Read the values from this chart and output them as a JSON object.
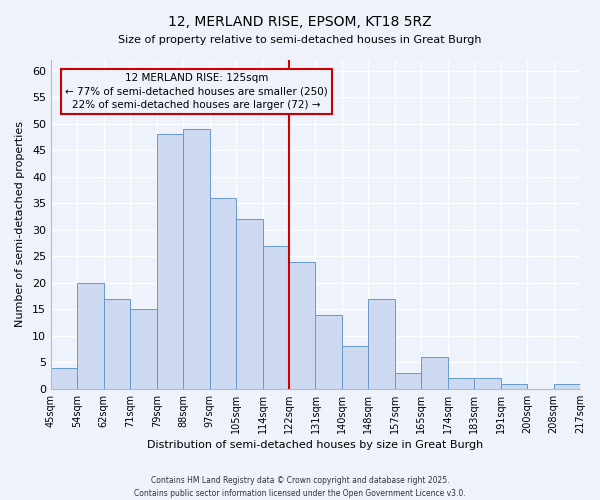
{
  "title": "12, MERLAND RISE, EPSOM, KT18 5RZ",
  "subtitle": "Size of property relative to semi-detached houses in Great Burgh",
  "xlabel": "Distribution of semi-detached houses by size in Great Burgh",
  "ylabel": "Number of semi-detached properties",
  "bin_labels": [
    "45sqm",
    "54sqm",
    "62sqm",
    "71sqm",
    "79sqm",
    "88sqm",
    "97sqm",
    "105sqm",
    "114sqm",
    "122sqm",
    "131sqm",
    "140sqm",
    "148sqm",
    "157sqm",
    "165sqm",
    "174sqm",
    "183sqm",
    "191sqm",
    "200sqm",
    "208sqm",
    "217sqm"
  ],
  "counts": [
    4,
    20,
    17,
    15,
    48,
    49,
    36,
    32,
    27,
    24,
    14,
    8,
    17,
    3,
    6,
    2,
    2,
    1,
    0,
    1
  ],
  "bar_color": "#ccd9f0",
  "bar_edge_color": "#6699cc",
  "vline_idx": 9,
  "vline_color": "#cc0000",
  "annotation_title": "12 MERLAND RISE: 125sqm",
  "annotation_line1": "← 77% of semi-detached houses are smaller (250)",
  "annotation_line2": "22% of semi-detached houses are larger (72) →",
  "annotation_box_edge": "#cc0000",
  "ylim": [
    0,
    62
  ],
  "yticks": [
    0,
    5,
    10,
    15,
    20,
    25,
    30,
    35,
    40,
    45,
    50,
    55,
    60
  ],
  "footer_line1": "Contains HM Land Registry data © Crown copyright and database right 2025.",
  "footer_line2": "Contains public sector information licensed under the Open Government Licence v3.0.",
  "bg_color": "#eef2fa",
  "grid_color": "#ffffff",
  "title_fontsize": 10,
  "subtitle_fontsize": 8,
  "ylabel_fontsize": 8,
  "xlabel_fontsize": 8
}
